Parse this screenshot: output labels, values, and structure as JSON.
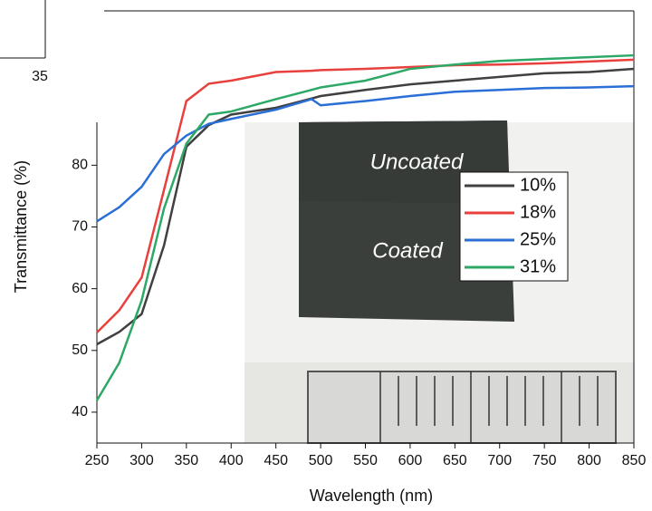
{
  "chart_data": {
    "type": "line",
    "x_label": "Wavelength (nm)",
    "y_label": "Transmittance (%)",
    "x": [
      250,
      275,
      300,
      325,
      350,
      375,
      400,
      450,
      490,
      500,
      550,
      600,
      650,
      700,
      750,
      800,
      850
    ],
    "series": [
      {
        "name": "10%",
        "color": "#404040",
        "values": [
          51,
          53,
          55.9,
          67,
          83,
          86.5,
          88.2,
          89.3,
          90.8,
          91.2,
          92.2,
          93.1,
          93.7,
          94.3,
          94.9,
          95.1,
          95.6
        ]
      },
      {
        "name": "18%",
        "color": "#e8403c",
        "values": [
          52.9,
          56.5,
          61.8,
          76,
          90.4,
          93.2,
          93.7,
          95.1,
          95.3,
          95.4,
          95.6,
          95.9,
          96.2,
          96.3,
          96.5,
          96.8,
          97.1
        ]
      },
      {
        "name": "25%",
        "color": "#2a6fd6",
        "values": [
          70.9,
          73.2,
          76.5,
          81.8,
          84.8,
          86.7,
          87.5,
          89,
          90.7,
          89.7,
          90.4,
          91.2,
          91.9,
          92.2,
          92.5,
          92.6,
          92.8
        ]
      },
      {
        "name": "31%",
        "color": "#2ea866",
        "values": [
          41.9,
          48,
          58.1,
          73,
          83.5,
          88.2,
          88.7,
          90.7,
          92.2,
          92.6,
          93.7,
          95.6,
          96.3,
          96.9,
          97.2,
          97.5,
          97.8
        ]
      }
    ],
    "xlim": [
      250,
      850
    ],
    "xticks": [
      250,
      300,
      350,
      400,
      450,
      500,
      550,
      600,
      650,
      700,
      750,
      800,
      850
    ],
    "ylim": [
      35,
      105
    ],
    "yticks": [
      40,
      50,
      60,
      70,
      80
    ],
    "legend": "upper right",
    "annotations": [
      "Uncoated",
      "Coated",
      "35"
    ]
  }
}
